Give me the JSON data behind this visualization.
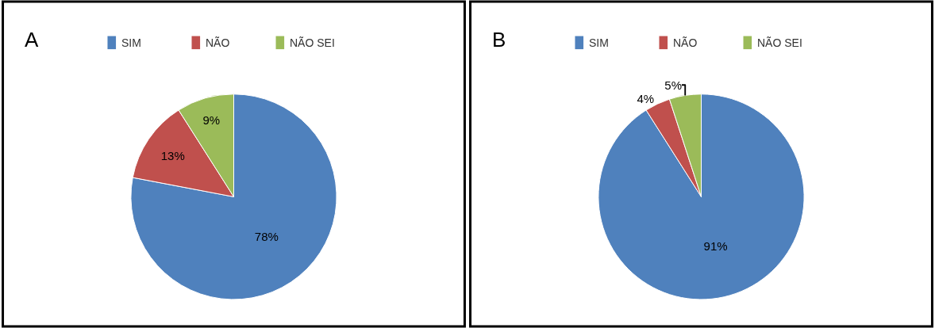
{
  "chart_data": [
    {
      "type": "pie",
      "title": "A",
      "categories": [
        "SIM",
        "NÃO",
        "NÃO SEI"
      ],
      "values": [
        78,
        13,
        9
      ],
      "value_labels": [
        "78%",
        "13%",
        "9%"
      ],
      "colors": [
        "#4f81bd",
        "#c0504d",
        "#9bbb59"
      ],
      "legend": "top"
    },
    {
      "type": "pie",
      "title": "B",
      "categories": [
        "SIM",
        "NÃO",
        "NÃO SEI"
      ],
      "values": [
        91,
        4,
        5
      ],
      "value_labels": [
        "91%",
        "4%",
        "5%"
      ],
      "colors": [
        "#4f81bd",
        "#c0504d",
        "#9bbb59"
      ],
      "legend": "top"
    }
  ]
}
